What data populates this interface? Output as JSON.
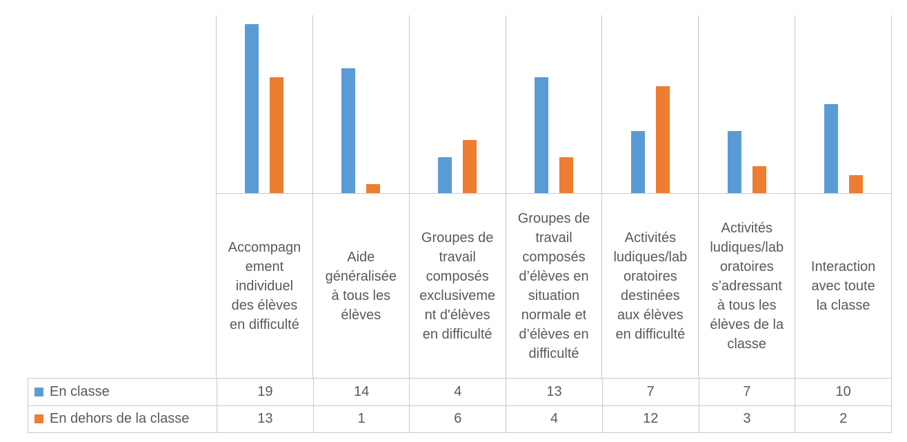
{
  "chart_data": {
    "type": "bar",
    "title": "",
    "xlabel": "",
    "ylabel": "",
    "ylim": [
      0,
      20
    ],
    "y_axis_visible": false,
    "grid": "vertical-category-separators",
    "legend_position": "data-table",
    "categories": [
      "Accompagnement individuel des élèves en difficulté",
      "Aide généralisée à tous les élèves",
      "Groupes de travail composés exclusivement d'élèves en difficulté",
      "Groupes de travail composés d’élèves en situation normale et d’élèves en difficulté",
      "Activités ludiques/laboratoires destinées aux élèves en difficulté",
      "Activités ludiques/laboratoires s’adressant à tous les élèves de la classe",
      "Interaction avec toute la classe"
    ],
    "categories_wrapped": [
      [
        "Accompagn",
        "ement",
        "individuel",
        "des élèves",
        "en difficulté"
      ],
      [
        "Aide",
        "généralisée",
        "à tous les",
        "élèves"
      ],
      [
        "Groupes de",
        "travail",
        "composés",
        "exclusiveme",
        "nt d'élèves",
        "en difficulté"
      ],
      [
        "Groupes de",
        "travail",
        "composés",
        "d’élèves en",
        "situation",
        "normale et",
        "d’élèves en",
        "difficulté"
      ],
      [
        "Activités",
        "ludiques/lab",
        "oratoires",
        "destinées",
        "aux élèves",
        "en difficulté"
      ],
      [
        "Activités",
        "ludiques/lab",
        "oratoires",
        "s’adressant",
        "à tous les",
        "élèves de la",
        "classe"
      ],
      [
        "Interaction",
        "avec toute",
        "la classe"
      ]
    ],
    "series": [
      {
        "name": "En classe",
        "color": "#5B9BD5",
        "values": [
          19,
          14,
          4,
          13,
          7,
          7,
          10
        ]
      },
      {
        "name": "En dehors de la classe",
        "color": "#ED7D31",
        "values": [
          13,
          1,
          6,
          4,
          12,
          3,
          2
        ]
      }
    ]
  },
  "colors": {
    "series_1": "#5B9BD5",
    "series_2": "#ED7D31",
    "gridline": "#C9C9C9",
    "text": "#595959",
    "background": "#FFFFFF"
  }
}
